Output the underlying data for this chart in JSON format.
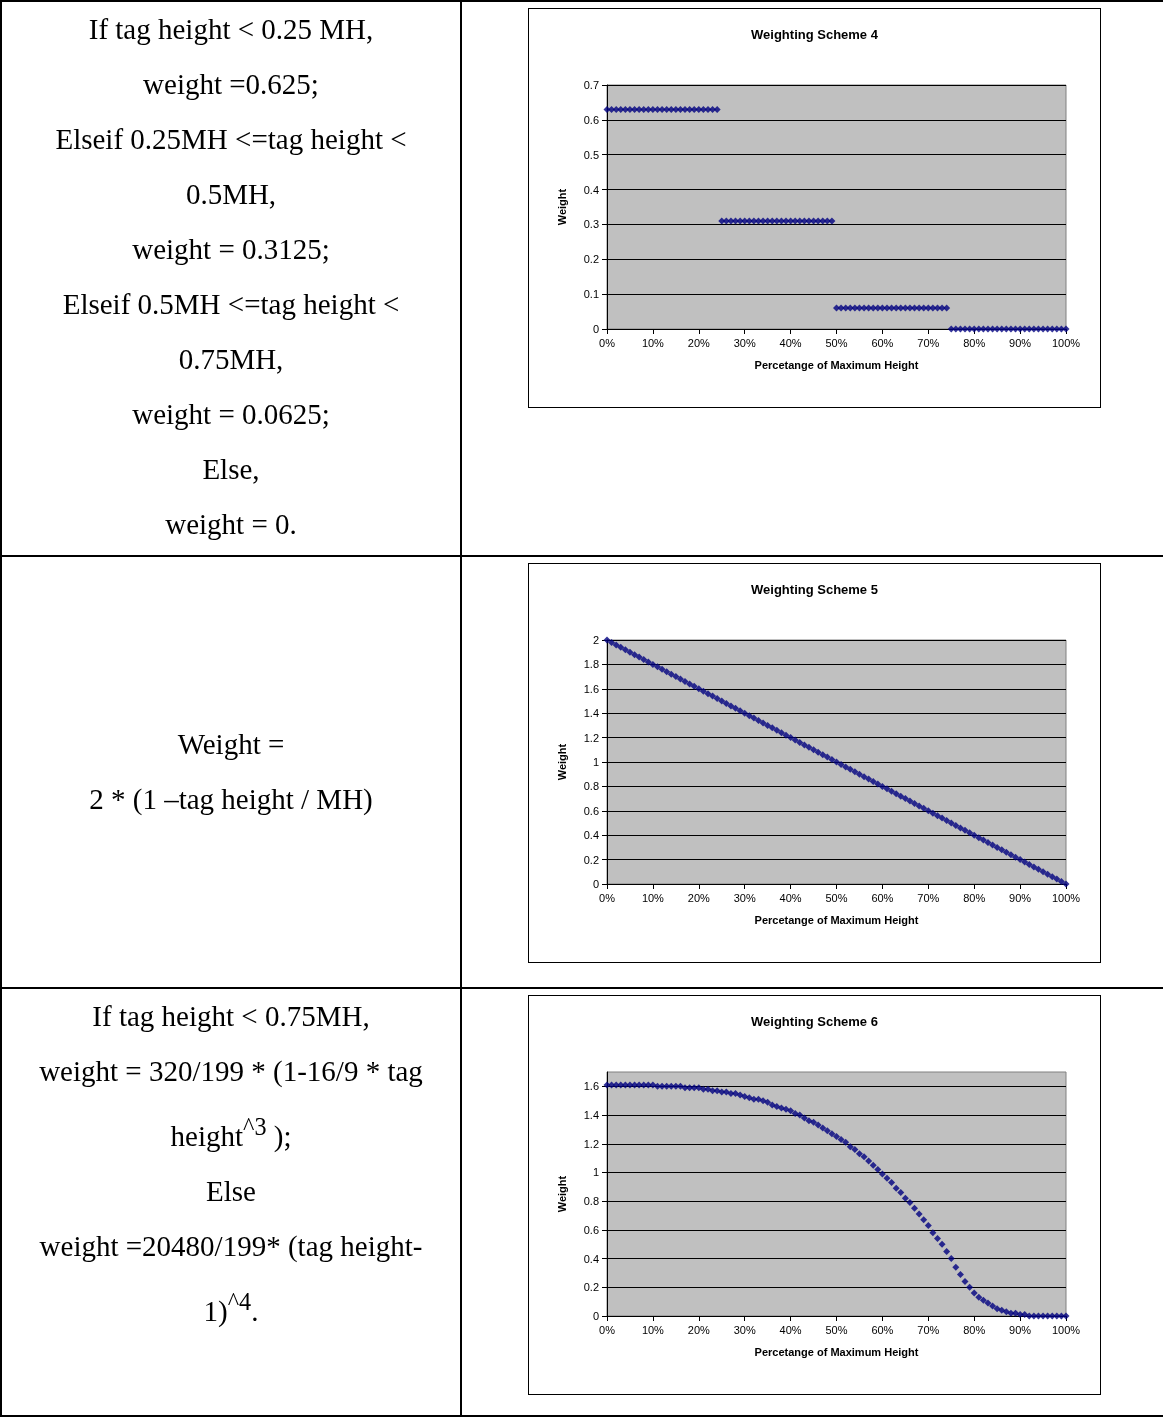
{
  "chart_data": [
    {
      "type": "other",
      "annotations": [
        "If tag height < 0.25 MH,",
        "weight =0.625;",
        "Elseif 0.25MH <=tag height <",
        "0.5MH,",
        "weight = 0.3125;",
        "Elseif 0.5MH <=tag height <",
        "0.75MH,",
        "weight = 0.0625;",
        "Else,",
        "weight = 0."
      ]
    },
    {
      "type": "scatter",
      "title": "Weighting Scheme 4",
      "xlabel": "Percetange of Maximum Height",
      "ylabel": "Weight",
      "grid": "y",
      "marker": "diamond",
      "xlim": [
        0,
        100
      ],
      "ylim": [
        0,
        0.7
      ],
      "xticks": [
        {
          "value": 0,
          "label": "0%"
        },
        {
          "value": 10,
          "label": "10%"
        },
        {
          "value": 20,
          "label": "20%"
        },
        {
          "value": 30,
          "label": "30%"
        },
        {
          "value": 40,
          "label": "40%"
        },
        {
          "value": 50,
          "label": "50%"
        },
        {
          "value": 60,
          "label": "60%"
        },
        {
          "value": 70,
          "label": "70%"
        },
        {
          "value": 80,
          "label": "80%"
        },
        {
          "value": 90,
          "label": "90%"
        },
        {
          "value": 100,
          "label": "100%"
        }
      ],
      "yticks": [
        0,
        0.1,
        0.2,
        0.3,
        0.4,
        0.5,
        0.6,
        0.7
      ],
      "x": [
        0,
        1,
        2,
        3,
        4,
        5,
        6,
        7,
        8,
        9,
        10,
        11,
        12,
        13,
        14,
        15,
        16,
        17,
        18,
        19,
        20,
        21,
        22,
        23,
        24,
        25,
        26,
        27,
        28,
        29,
        30,
        31,
        32,
        33,
        34,
        35,
        36,
        37,
        38,
        39,
        40,
        41,
        42,
        43,
        44,
        45,
        46,
        47,
        48,
        49,
        50,
        51,
        52,
        53,
        54,
        55,
        56,
        57,
        58,
        59,
        60,
        61,
        62,
        63,
        64,
        65,
        66,
        67,
        68,
        69,
        70,
        71,
        72,
        73,
        74,
        75,
        76,
        77,
        78,
        79,
        80,
        81,
        82,
        83,
        84,
        85,
        86,
        87,
        88,
        89,
        90,
        91,
        92,
        93,
        94,
        95,
        96,
        97,
        98,
        99,
        100
      ],
      "series": [
        {
          "color": "#000080",
          "values": [
            0.63,
            0.63,
            0.63,
            0.63,
            0.63,
            0.63,
            0.63,
            0.63,
            0.63,
            0.63,
            0.63,
            0.63,
            0.63,
            0.63,
            0.63,
            0.63,
            0.63,
            0.63,
            0.63,
            0.63,
            0.63,
            0.63,
            0.63,
            0.63,
            0.63,
            0.31,
            0.31,
            0.31,
            0.31,
            0.31,
            0.31,
            0.31,
            0.31,
            0.31,
            0.31,
            0.31,
            0.31,
            0.31,
            0.31,
            0.31,
            0.31,
            0.31,
            0.31,
            0.31,
            0.31,
            0.31,
            0.31,
            0.31,
            0.31,
            0.31,
            0.06,
            0.06,
            0.06,
            0.06,
            0.06,
            0.06,
            0.06,
            0.06,
            0.06,
            0.06,
            0.06,
            0.06,
            0.06,
            0.06,
            0.06,
            0.06,
            0.06,
            0.06,
            0.06,
            0.06,
            0.06,
            0.06,
            0.06,
            0.06,
            0.06,
            0,
            0,
            0,
            0,
            0,
            0,
            0,
            0,
            0,
            0,
            0,
            0,
            0,
            0,
            0,
            0,
            0,
            0,
            0,
            0,
            0,
            0,
            0,
            0,
            0,
            0
          ]
        }
      ]
    },
    {
      "type": "other",
      "annotations": [
        "Weight =",
        "2 * (1 –tag height / MH)"
      ]
    },
    {
      "type": "scatter",
      "title": "Weighting Scheme 5",
      "xlabel": "Percetange of Maximum Height",
      "ylabel": "Weight",
      "grid": "y",
      "marker": "diamond",
      "xlim": [
        0,
        100
      ],
      "ylim": [
        0,
        2
      ],
      "xticks": [
        {
          "value": 0,
          "label": "0%"
        },
        {
          "value": 10,
          "label": "10%"
        },
        {
          "value": 20,
          "label": "20%"
        },
        {
          "value": 30,
          "label": "30%"
        },
        {
          "value": 40,
          "label": "40%"
        },
        {
          "value": 50,
          "label": "50%"
        },
        {
          "value": 60,
          "label": "60%"
        },
        {
          "value": 70,
          "label": "70%"
        },
        {
          "value": 80,
          "label": "80%"
        },
        {
          "value": 90,
          "label": "90%"
        },
        {
          "value": 100,
          "label": "100%"
        }
      ],
      "yticks": [
        0,
        0.2,
        0.4,
        0.6,
        0.8,
        1,
        1.2,
        1.4,
        1.6,
        1.8,
        2
      ],
      "x": [
        0,
        1,
        2,
        3,
        4,
        5,
        6,
        7,
        8,
        9,
        10,
        11,
        12,
        13,
        14,
        15,
        16,
        17,
        18,
        19,
        20,
        21,
        22,
        23,
        24,
        25,
        26,
        27,
        28,
        29,
        30,
        31,
        32,
        33,
        34,
        35,
        36,
        37,
        38,
        39,
        40,
        41,
        42,
        43,
        44,
        45,
        46,
        47,
        48,
        49,
        50,
        51,
        52,
        53,
        54,
        55,
        56,
        57,
        58,
        59,
        60,
        61,
        62,
        63,
        64,
        65,
        66,
        67,
        68,
        69,
        70,
        71,
        72,
        73,
        74,
        75,
        76,
        77,
        78,
        79,
        80,
        81,
        82,
        83,
        84,
        85,
        86,
        87,
        88,
        89,
        90,
        91,
        92,
        93,
        94,
        95,
        96,
        97,
        98,
        99,
        100
      ],
      "series": [
        {
          "color": "#000080",
          "values": [
            2,
            1.98,
            1.96,
            1.94,
            1.92,
            1.9,
            1.88,
            1.86,
            1.84,
            1.82,
            1.8,
            1.78,
            1.76,
            1.74,
            1.72,
            1.7,
            1.68,
            1.66,
            1.64,
            1.62,
            1.6,
            1.58,
            1.56,
            1.54,
            1.52,
            1.5,
            1.48,
            1.46,
            1.44,
            1.42,
            1.4,
            1.38,
            1.36,
            1.34,
            1.32,
            1.3,
            1.28,
            1.26,
            1.24,
            1.22,
            1.2,
            1.18,
            1.16,
            1.14,
            1.12,
            1.1,
            1.08,
            1.06,
            1.04,
            1.02,
            1,
            0.98,
            0.96,
            0.94,
            0.92,
            0.9,
            0.88,
            0.86,
            0.84,
            0.82,
            0.8,
            0.78,
            0.76,
            0.74,
            0.72,
            0.7,
            0.68,
            0.66,
            0.64,
            0.62,
            0.6,
            0.58,
            0.56,
            0.54,
            0.52,
            0.5,
            0.48,
            0.46,
            0.44,
            0.42,
            0.4,
            0.38,
            0.36,
            0.34,
            0.32,
            0.3,
            0.28,
            0.26,
            0.24,
            0.22,
            0.2,
            0.18,
            0.16,
            0.14,
            0.12,
            0.1,
            0.08,
            0.06,
            0.04,
            0.02,
            0
          ]
        }
      ]
    },
    {
      "type": "other",
      "annotations": [
        "If tag height < 0.75MH,",
        "weight = 320/199 * (1-16/9 * tag",
        "height$^{^3}$ );",
        "Else",
        "weight =20480/199* (tag height-",
        "1)$^{^4}$."
      ]
    },
    {
      "type": "scatter",
      "title": "Weighting Scheme 6",
      "xlabel": "Percetange of Maximum Height",
      "ylabel": "Weight",
      "grid": "y",
      "marker": "diamond",
      "xlim": [
        0,
        100
      ],
      "ylim": [
        0,
        1.7
      ],
      "xticks": [
        {
          "value": 0,
          "label": "0%"
        },
        {
          "value": 10,
          "label": "10%"
        },
        {
          "value": 20,
          "label": "20%"
        },
        {
          "value": 30,
          "label": "30%"
        },
        {
          "value": 40,
          "label": "40%"
        },
        {
          "value": 50,
          "label": "50%"
        },
        {
          "value": 60,
          "label": "60%"
        },
        {
          "value": 70,
          "label": "70%"
        },
        {
          "value": 80,
          "label": "80%"
        },
        {
          "value": 90,
          "label": "90%"
        },
        {
          "value": 100,
          "label": "100%"
        }
      ],
      "yticks": [
        0,
        0.2,
        0.4,
        0.6,
        0.8,
        1,
        1.2,
        1.4,
        1.6
      ],
      "x": [
        0,
        1,
        2,
        3,
        4,
        5,
        6,
        7,
        8,
        9,
        10,
        11,
        12,
        13,
        14,
        15,
        16,
        17,
        18,
        19,
        20,
        21,
        22,
        23,
        24,
        25,
        26,
        27,
        28,
        29,
        30,
        31,
        32,
        33,
        34,
        35,
        36,
        37,
        38,
        39,
        40,
        41,
        42,
        43,
        44,
        45,
        46,
        47,
        48,
        49,
        50,
        51,
        52,
        53,
        54,
        55,
        56,
        57,
        58,
        59,
        60,
        61,
        62,
        63,
        64,
        65,
        66,
        67,
        68,
        69,
        70,
        71,
        72,
        73,
        74,
        75,
        76,
        77,
        78,
        79,
        80,
        81,
        82,
        83,
        84,
        85,
        86,
        87,
        88,
        89,
        90,
        91,
        92,
        93,
        94,
        95,
        96,
        97,
        98,
        99,
        100
      ],
      "series": [
        {
          "color": "#000080",
          "values": [
            1.61,
            1.61,
            1.61,
            1.61,
            1.61,
            1.61,
            1.61,
            1.61,
            1.61,
            1.61,
            1.61,
            1.6,
            1.6,
            1.6,
            1.6,
            1.6,
            1.6,
            1.59,
            1.59,
            1.59,
            1.59,
            1.58,
            1.58,
            1.57,
            1.57,
            1.56,
            1.56,
            1.55,
            1.55,
            1.54,
            1.53,
            1.52,
            1.51,
            1.51,
            1.5,
            1.49,
            1.47,
            1.46,
            1.45,
            1.44,
            1.43,
            1.41,
            1.4,
            1.38,
            1.36,
            1.35,
            1.33,
            1.31,
            1.29,
            1.27,
            1.25,
            1.23,
            1.21,
            1.18,
            1.16,
            1.13,
            1.11,
            1.08,
            1.05,
            1.02,
            0.99,
            0.96,
            0.93,
            0.89,
            0.86,
            0.82,
            0.79,
            0.75,
            0.71,
            0.67,
            0.63,
            0.58,
            0.54,
            0.5,
            0.45,
            0.4,
            0.34,
            0.29,
            0.24,
            0.2,
            0.16,
            0.13,
            0.11,
            0.09,
            0.07,
            0.05,
            0.04,
            0.03,
            0.02,
            0.02,
            0.01,
            0.01,
            0,
            0,
            0,
            0,
            0,
            0,
            0,
            0,
            0
          ]
        }
      ]
    }
  ]
}
